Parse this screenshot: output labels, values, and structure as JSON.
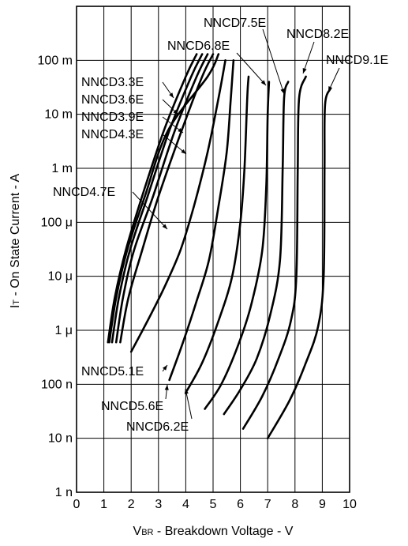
{
  "chart_data": {
    "type": "line",
    "xlabel": "Vʙʀ - Breakdown Voltage - V",
    "xlabel_main": "V",
    "xlabel_sub": "BR",
    "xlabel_rest": " -  Breakdown Voltage  - V",
    "ylabel_main": "I",
    "ylabel_sub": "T",
    "ylabel_rest": " -  On State Current  - A",
    "xlim": [
      0,
      10
    ],
    "ylim": [
      1e-09,
      1
    ],
    "yscale": "log",
    "grid": true,
    "x_ticks": [
      "0",
      "1",
      "2",
      "3",
      "4",
      "5",
      "6",
      "7",
      "8",
      "9",
      "10"
    ],
    "y_ticks": [
      {
        "value": 1e-09,
        "label": "1 n"
      },
      {
        "value": 1e-08,
        "label": "10 n"
      },
      {
        "value": 1e-07,
        "label": "100 n"
      },
      {
        "value": 1e-06,
        "label": "1 μ"
      },
      {
        "value": 1e-05,
        "label": "10 μ"
      },
      {
        "value": 0.0001,
        "label": "100 μ"
      },
      {
        "value": 0.001,
        "label": "1 m"
      },
      {
        "value": 0.01,
        "label": "10 m"
      },
      {
        "value": 0.1,
        "label": "100 m"
      }
    ],
    "series": [
      {
        "name": "NNCD3.3E",
        "points": [
          [
            1.15,
            6e-07
          ],
          [
            1.4,
            4e-06
          ],
          [
            1.8,
            3e-05
          ],
          [
            2.4,
            0.0003
          ],
          [
            3.2,
            0.005
          ],
          [
            4.0,
            0.05
          ],
          [
            4.4,
            0.13
          ]
        ]
      },
      {
        "name": "NNCD3.6E",
        "points": [
          [
            1.3,
            6e-07
          ],
          [
            1.55,
            4e-06
          ],
          [
            1.95,
            3e-05
          ],
          [
            2.6,
            0.0003
          ],
          [
            3.4,
            0.005
          ],
          [
            4.2,
            0.05
          ],
          [
            4.6,
            0.13
          ]
        ]
      },
      {
        "name": "NNCD3.9E",
        "points": [
          [
            1.45,
            6e-07
          ],
          [
            1.7,
            4e-06
          ],
          [
            2.1,
            3e-05
          ],
          [
            2.8,
            0.0003
          ],
          [
            3.6,
            0.005
          ],
          [
            4.4,
            0.05
          ],
          [
            4.8,
            0.13
          ]
        ]
      },
      {
        "name": "NNCD4.3E",
        "points": [
          [
            1.6,
            6e-07
          ],
          [
            1.9,
            4e-06
          ],
          [
            2.4,
            3e-05
          ],
          [
            3.0,
            0.0003
          ],
          [
            3.85,
            0.005
          ],
          [
            4.6,
            0.05
          ],
          [
            5.0,
            0.13
          ]
        ]
      },
      {
        "name": "NNCD4.7E",
        "points": [
          [
            1.2,
            6e-07
          ],
          [
            1.45,
            4e-06
          ],
          [
            1.85,
            3e-05
          ],
          [
            2.5,
            0.0003
          ],
          [
            3.35,
            0.005
          ],
          [
            4.8,
            0.05
          ],
          [
            5.2,
            0.13
          ]
        ]
      },
      {
        "name": "NNCD5.1E",
        "points": [
          [
            2.0,
            4e-07
          ],
          [
            2.6,
            1.5e-06
          ],
          [
            3.2,
            6e-06
          ],
          [
            3.8,
            3e-05
          ],
          [
            4.3,
            0.0002
          ],
          [
            4.8,
            0.002
          ],
          [
            5.2,
            0.02
          ],
          [
            5.45,
            0.1
          ]
        ]
      },
      {
        "name": "NNCD5.6E",
        "points": [
          [
            3.4,
            1.2e-07
          ],
          [
            3.9,
            6e-07
          ],
          [
            4.4,
            3.5e-06
          ],
          [
            4.85,
            2e-05
          ],
          [
            5.2,
            0.0002
          ],
          [
            5.5,
            0.002
          ],
          [
            5.65,
            0.02
          ],
          [
            5.75,
            0.1
          ]
        ]
      },
      {
        "name": "NNCD6.2E",
        "points": [
          [
            4.0,
            7e-08
          ],
          [
            4.6,
            2.5e-07
          ],
          [
            5.2,
            1.5e-06
          ],
          [
            5.7,
            1e-05
          ],
          [
            6.0,
            0.0001
          ],
          [
            6.15,
            0.001
          ],
          [
            6.25,
            0.02
          ],
          [
            6.3,
            0.05
          ]
        ]
      },
      {
        "name": "NNCD6.8E",
        "points": [
          [
            4.7,
            3.5e-08
          ],
          [
            5.3,
            1e-07
          ],
          [
            5.9,
            5e-07
          ],
          [
            6.4,
            3e-06
          ],
          [
            6.8,
            3e-05
          ],
          [
            6.95,
            0.0005
          ],
          [
            7.0,
            0.01
          ],
          [
            7.05,
            0.04
          ]
        ]
      },
      {
        "name": "NNCD7.5E",
        "points": [
          [
            5.4,
            2.8e-08
          ],
          [
            6.0,
            8e-08
          ],
          [
            6.6,
            3e-07
          ],
          [
            7.1,
            2e-06
          ],
          [
            7.45,
            2e-05
          ],
          [
            7.55,
            0.001
          ],
          [
            7.6,
            0.02
          ],
          [
            7.75,
            0.04
          ]
        ]
      },
      {
        "name": "NNCD8.2E",
        "points": [
          [
            6.1,
            1.5e-08
          ],
          [
            6.8,
            6e-08
          ],
          [
            7.4,
            3e-07
          ],
          [
            7.85,
            1.5e-06
          ],
          [
            8.05,
            1e-05
          ],
          [
            8.1,
            0.001
          ],
          [
            8.15,
            0.02
          ],
          [
            8.4,
            0.05
          ]
        ]
      },
      {
        "name": "NNCD9.1E",
        "points": [
          [
            7.0,
            1e-08
          ],
          [
            7.8,
            5e-08
          ],
          [
            8.4,
            2.5e-07
          ],
          [
            8.85,
            1.2e-06
          ],
          [
            9.05,
            1e-05
          ],
          [
            9.08,
            0.001
          ],
          [
            9.1,
            0.015
          ],
          [
            9.3,
            0.03
          ]
        ]
      }
    ]
  }
}
